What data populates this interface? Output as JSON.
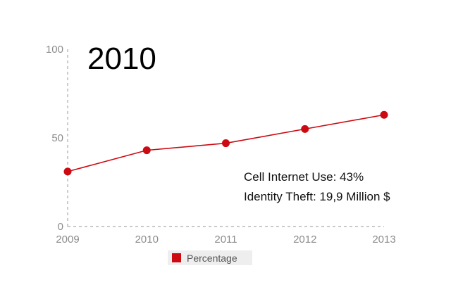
{
  "overlay": {
    "year": "2010",
    "annotation_line1": "Cell Internet Use: 43%",
    "annotation_line2": "Identity Theft: 19,9 Million $"
  },
  "colors": {
    "series": "#cc0a12",
    "axis": "#aaaaaa",
    "ticks": "#8c8c8c"
  },
  "chart_data": {
    "type": "line",
    "title": "",
    "xlabel": "",
    "ylabel": "",
    "x": [
      "2009",
      "2010",
      "2011",
      "2012",
      "2013"
    ],
    "ylim": [
      0,
      100
    ],
    "yticks": [
      0,
      50,
      100
    ],
    "grid": false,
    "legend_position": "bottom",
    "series": [
      {
        "name": "Percentage",
        "values": [
          31,
          43,
          47,
          55,
          63
        ]
      }
    ]
  }
}
